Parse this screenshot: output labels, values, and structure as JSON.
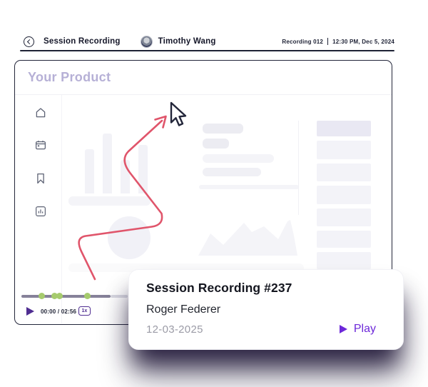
{
  "topbar": {
    "title": "Session Recording",
    "user_name": "Timothy Wang",
    "recording_id": "Recording 012",
    "timestamp": "12:30 PM, Dec 5, 2024",
    "icons": [
      "back-icon",
      "avatar"
    ]
  },
  "product": {
    "title": "Your Product",
    "sidebar_icons": [
      "home-icon",
      "calendar-icon",
      "bookmark-icon",
      "bar-chart-icon"
    ]
  },
  "player": {
    "time": "00:00 / 02:56",
    "speed": "1x",
    "icons": [
      "play-icon"
    ],
    "event_markers_x": [
      58,
      76,
      83,
      122
    ]
  },
  "card": {
    "title": "Session Recording #237",
    "user_name": "Roger Federer",
    "date": "12-03-2025",
    "play_label": "Play",
    "icons": [
      "play-icon"
    ]
  },
  "colors": {
    "accent_purple": "#6d28d9",
    "player_purple": "#4f2d91",
    "path_red": "#e0556b",
    "marker_green": "#a6cb6d",
    "title_lavender": "#b6b0d6",
    "ink_dark": "#1e2235"
  }
}
